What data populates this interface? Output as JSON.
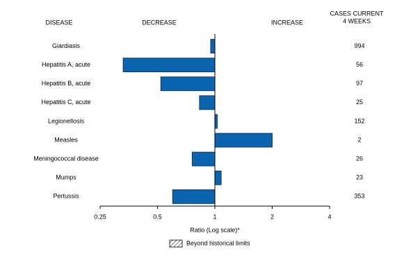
{
  "chart_data": {
    "type": "bar",
    "orientation": "horizontal",
    "xscale": "log",
    "headers": {
      "disease": "DISEASE",
      "decrease": "DECREASE",
      "increase": "INCREASE",
      "cases": [
        "CASES CURRENT",
        "4 WEEKS"
      ]
    },
    "categories": [
      "Giardiasis",
      "Hepatitis A, acute",
      "Hepatitis B, acute",
      "Hepatitis C, acute",
      "Legionellosis",
      "Measles",
      "Meningococcal disease",
      "Mumps",
      "Pertussis"
    ],
    "values": [
      0.95,
      0.33,
      0.52,
      0.83,
      1.03,
      2.0,
      0.76,
      1.08,
      0.6
    ],
    "cases": [
      994,
      56,
      97,
      25,
      152,
      2,
      26,
      23,
      353
    ],
    "color": "#0b64b0",
    "baseline": 1,
    "xlim": [
      0.25,
      4
    ],
    "xticks": [
      0.25,
      0.5,
      1,
      2,
      4
    ],
    "xlabel": "Ratio (Log scale)*",
    "legend": {
      "label": "Beyond historical limits"
    }
  }
}
